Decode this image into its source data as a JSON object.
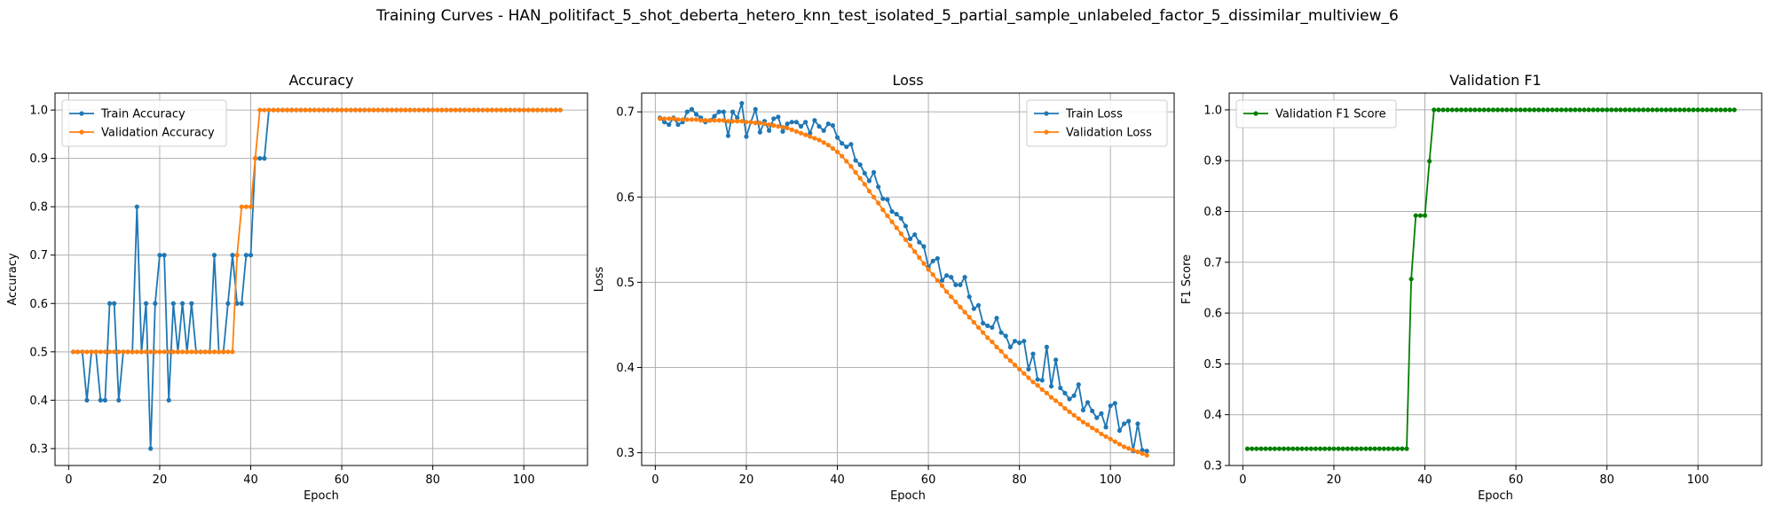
{
  "figure": {
    "suptitle": "Training Curves - HAN_politifact_5_shot_deberta_hetero_knn_test_isolated_5_partial_sample_unlabeled_factor_5_dissimilar_multiview_6"
  },
  "colors": {
    "blue": "#1f77b4",
    "orange": "#ff7f0e",
    "green": "#008000",
    "grid": "#b0b0b0"
  },
  "chart_data": [
    {
      "type": "line",
      "title": "Accuracy",
      "xlabel": "Epoch",
      "ylabel": "Accuracy",
      "xlim": [
        -3,
        114
      ],
      "ylim": [
        0.265,
        1.035
      ],
      "xticks": [
        0,
        20,
        40,
        60,
        80,
        100
      ],
      "yticks": [
        0.3,
        0.4,
        0.5,
        0.6,
        0.7,
        0.8,
        0.9,
        1.0
      ],
      "grid": true,
      "legend": "upper-left",
      "x": [
        1,
        2,
        3,
        4,
        5,
        6,
        7,
        8,
        9,
        10,
        11,
        12,
        13,
        14,
        15,
        16,
        17,
        18,
        19,
        20,
        21,
        22,
        23,
        24,
        25,
        26,
        27,
        28,
        29,
        30,
        31,
        32,
        33,
        34,
        35,
        36,
        37,
        38,
        39,
        40,
        41,
        42,
        43,
        44,
        45,
        46,
        47,
        48,
        49,
        50,
        51,
        52,
        53,
        54,
        55,
        56,
        57,
        58,
        59,
        60,
        61,
        62,
        63,
        64,
        65,
        66,
        67,
        68,
        69,
        70,
        71,
        72,
        73,
        74,
        75,
        76,
        77,
        78,
        79,
        80,
        81,
        82,
        83,
        84,
        85,
        86,
        87,
        88,
        89,
        90,
        91,
        92,
        93,
        94,
        95,
        96,
        97,
        98,
        99,
        100,
        101,
        102,
        103,
        104,
        105,
        106,
        107,
        108
      ],
      "series": [
        {
          "name": "Train Accuracy",
          "color": "#1f77b4",
          "values": [
            0.5,
            0.5,
            0.5,
            0.4,
            0.5,
            0.5,
            0.4,
            0.4,
            0.6,
            0.6,
            0.4,
            0.5,
            0.5,
            0.5,
            0.8,
            0.5,
            0.6,
            0.3,
            0.6,
            0.7,
            0.7,
            0.4,
            0.6,
            0.5,
            0.6,
            0.5,
            0.6,
            0.5,
            0.5,
            0.5,
            0.5,
            0.7,
            0.5,
            0.5,
            0.6,
            0.7,
            0.6,
            0.6,
            0.7,
            0.7,
            0.9,
            0.9,
            0.9,
            1.0,
            1.0,
            1.0,
            1.0,
            1.0,
            1.0,
            1.0,
            1.0,
            1.0,
            1.0,
            1.0,
            1.0,
            1.0,
            1.0,
            1.0,
            1.0,
            1.0,
            1.0,
            1.0,
            1.0,
            1.0,
            1.0,
            1.0,
            1.0,
            1.0,
            1.0,
            1.0,
            1.0,
            1.0,
            1.0,
            1.0,
            1.0,
            1.0,
            1.0,
            1.0,
            1.0,
            1.0,
            1.0,
            1.0,
            1.0,
            1.0,
            1.0,
            1.0,
            1.0,
            1.0,
            1.0,
            1.0,
            1.0,
            1.0,
            1.0,
            1.0,
            1.0,
            1.0,
            1.0,
            1.0,
            1.0,
            1.0,
            1.0,
            1.0,
            1.0,
            1.0,
            1.0,
            1.0,
            1.0,
            1.0
          ]
        },
        {
          "name": "Validation Accuracy",
          "color": "#ff7f0e",
          "values": [
            0.5,
            0.5,
            0.5,
            0.5,
            0.5,
            0.5,
            0.5,
            0.5,
            0.5,
            0.5,
            0.5,
            0.5,
            0.5,
            0.5,
            0.5,
            0.5,
            0.5,
            0.5,
            0.5,
            0.5,
            0.5,
            0.5,
            0.5,
            0.5,
            0.5,
            0.5,
            0.5,
            0.5,
            0.5,
            0.5,
            0.5,
            0.5,
            0.5,
            0.5,
            0.5,
            0.5,
            0.7,
            0.8,
            0.8,
            0.8,
            0.9,
            1.0,
            1.0,
            1.0,
            1.0,
            1.0,
            1.0,
            1.0,
            1.0,
            1.0,
            1.0,
            1.0,
            1.0,
            1.0,
            1.0,
            1.0,
            1.0,
            1.0,
            1.0,
            1.0,
            1.0,
            1.0,
            1.0,
            1.0,
            1.0,
            1.0,
            1.0,
            1.0,
            1.0,
            1.0,
            1.0,
            1.0,
            1.0,
            1.0,
            1.0,
            1.0,
            1.0,
            1.0,
            1.0,
            1.0,
            1.0,
            1.0,
            1.0,
            1.0,
            1.0,
            1.0,
            1.0,
            1.0,
            1.0,
            1.0,
            1.0,
            1.0,
            1.0,
            1.0,
            1.0,
            1.0,
            1.0,
            1.0,
            1.0,
            1.0,
            1.0,
            1.0,
            1.0,
            1.0,
            1.0,
            1.0,
            1.0,
            1.0
          ]
        }
      ]
    },
    {
      "type": "line",
      "title": "Loss",
      "xlabel": "Epoch",
      "ylabel": "Loss",
      "xlim": [
        -3,
        114
      ],
      "ylim": [
        0.285,
        0.722
      ],
      "xticks": [
        0,
        20,
        40,
        60,
        80,
        100
      ],
      "yticks": [
        0.3,
        0.4,
        0.5,
        0.6,
        0.7
      ],
      "grid": true,
      "legend": "upper-right",
      "x": [
        1,
        2,
        3,
        4,
        5,
        6,
        7,
        8,
        9,
        10,
        11,
        12,
        13,
        14,
        15,
        16,
        17,
        18,
        19,
        20,
        21,
        22,
        23,
        24,
        25,
        26,
        27,
        28,
        29,
        30,
        31,
        32,
        33,
        34,
        35,
        36,
        37,
        38,
        39,
        40,
        41,
        42,
        43,
        44,
        45,
        46,
        47,
        48,
        49,
        50,
        51,
        52,
        53,
        54,
        55,
        56,
        57,
        58,
        59,
        60,
        61,
        62,
        63,
        64,
        65,
        66,
        67,
        68,
        69,
        70,
        71,
        72,
        73,
        74,
        75,
        76,
        77,
        78,
        79,
        80,
        81,
        82,
        83,
        84,
        85,
        86,
        87,
        88,
        89,
        90,
        91,
        92,
        93,
        94,
        95,
        96,
        97,
        98,
        99,
        100,
        101,
        102,
        103,
        104,
        105,
        106,
        107,
        108
      ],
      "series": [
        {
          "name": "Train Loss",
          "color": "#1f77b4",
          "values": [
            0.693,
            0.688,
            0.685,
            0.693,
            0.685,
            0.688,
            0.7,
            0.703,
            0.697,
            0.693,
            0.688,
            0.69,
            0.695,
            0.7,
            0.7,
            0.672,
            0.7,
            0.693,
            0.71,
            0.671,
            0.688,
            0.703,
            0.676,
            0.689,
            0.678,
            0.692,
            0.694,
            0.677,
            0.686,
            0.688,
            0.688,
            0.683,
            0.688,
            0.675,
            0.69,
            0.683,
            0.678,
            0.686,
            0.684,
            0.67,
            0.663,
            0.659,
            0.662,
            0.643,
            0.638,
            0.628,
            0.619,
            0.629,
            0.612,
            0.598,
            0.597,
            0.583,
            0.58,
            0.575,
            0.566,
            0.551,
            0.556,
            0.547,
            0.542,
            0.518,
            0.525,
            0.528,
            0.502,
            0.508,
            0.506,
            0.497,
            0.497,
            0.506,
            0.483,
            0.469,
            0.473,
            0.452,
            0.449,
            0.447,
            0.458,
            0.441,
            0.437,
            0.424,
            0.431,
            0.429,
            0.431,
            0.398,
            0.416,
            0.386,
            0.385,
            0.424,
            0.378,
            0.409,
            0.376,
            0.37,
            0.363,
            0.367,
            0.38,
            0.35,
            0.359,
            0.349,
            0.341,
            0.346,
            0.33,
            0.355,
            0.358,
            0.326,
            0.334,
            0.337,
            0.302,
            0.334,
            0.303,
            0.302
          ]
        },
        {
          "name": "Validation Loss",
          "color": "#ff7f0e",
          "values": [
            0.692,
            0.692,
            0.692,
            0.692,
            0.691,
            0.691,
            0.691,
            0.691,
            0.691,
            0.69,
            0.69,
            0.69,
            0.69,
            0.69,
            0.69,
            0.689,
            0.689,
            0.689,
            0.689,
            0.688,
            0.688,
            0.687,
            0.687,
            0.686,
            0.685,
            0.684,
            0.683,
            0.682,
            0.681,
            0.679,
            0.677,
            0.675,
            0.673,
            0.671,
            0.669,
            0.667,
            0.664,
            0.661,
            0.657,
            0.653,
            0.648,
            0.642,
            0.636,
            0.629,
            0.622,
            0.615,
            0.607,
            0.6,
            0.593,
            0.585,
            0.578,
            0.571,
            0.564,
            0.557,
            0.55,
            0.543,
            0.536,
            0.529,
            0.522,
            0.515,
            0.509,
            0.502,
            0.496,
            0.489,
            0.483,
            0.477,
            0.471,
            0.465,
            0.459,
            0.453,
            0.447,
            0.441,
            0.435,
            0.43,
            0.424,
            0.419,
            0.413,
            0.408,
            0.403,
            0.398,
            0.393,
            0.388,
            0.383,
            0.379,
            0.374,
            0.37,
            0.365,
            0.361,
            0.357,
            0.352,
            0.348,
            0.344,
            0.34,
            0.336,
            0.333,
            0.329,
            0.326,
            0.322,
            0.319,
            0.316,
            0.313,
            0.31,
            0.307,
            0.305,
            0.303,
            0.301,
            0.299,
            0.297
          ]
        }
      ]
    },
    {
      "type": "line",
      "title": "Validation F1",
      "xlabel": "Epoch",
      "ylabel": "F1 Score",
      "xlim": [
        -3,
        114
      ],
      "ylim": [
        0.3,
        1.033
      ],
      "xticks": [
        0,
        20,
        40,
        60,
        80,
        100
      ],
      "yticks": [
        0.3,
        0.4,
        0.5,
        0.6,
        0.7,
        0.8,
        0.9,
        1.0
      ],
      "grid": true,
      "legend": "upper-left",
      "x": [
        1,
        2,
        3,
        4,
        5,
        6,
        7,
        8,
        9,
        10,
        11,
        12,
        13,
        14,
        15,
        16,
        17,
        18,
        19,
        20,
        21,
        22,
        23,
        24,
        25,
        26,
        27,
        28,
        29,
        30,
        31,
        32,
        33,
        34,
        35,
        36,
        37,
        38,
        39,
        40,
        41,
        42,
        43,
        44,
        45,
        46,
        47,
        48,
        49,
        50,
        51,
        52,
        53,
        54,
        55,
        56,
        57,
        58,
        59,
        60,
        61,
        62,
        63,
        64,
        65,
        66,
        67,
        68,
        69,
        70,
        71,
        72,
        73,
        74,
        75,
        76,
        77,
        78,
        79,
        80,
        81,
        82,
        83,
        84,
        85,
        86,
        87,
        88,
        89,
        90,
        91,
        92,
        93,
        94,
        95,
        96,
        97,
        98,
        99,
        100,
        101,
        102,
        103,
        104,
        105,
        106,
        107,
        108
      ],
      "series": [
        {
          "name": "Validation F1 Score",
          "color": "#008000",
          "values": [
            0.333,
            0.333,
            0.333,
            0.333,
            0.333,
            0.333,
            0.333,
            0.333,
            0.333,
            0.333,
            0.333,
            0.333,
            0.333,
            0.333,
            0.333,
            0.333,
            0.333,
            0.333,
            0.333,
            0.333,
            0.333,
            0.333,
            0.333,
            0.333,
            0.333,
            0.333,
            0.333,
            0.333,
            0.333,
            0.333,
            0.333,
            0.333,
            0.333,
            0.333,
            0.333,
            0.333,
            0.667,
            0.792,
            0.792,
            0.792,
            0.899,
            1.0,
            1.0,
            1.0,
            1.0,
            1.0,
            1.0,
            1.0,
            1.0,
            1.0,
            1.0,
            1.0,
            1.0,
            1.0,
            1.0,
            1.0,
            1.0,
            1.0,
            1.0,
            1.0,
            1.0,
            1.0,
            1.0,
            1.0,
            1.0,
            1.0,
            1.0,
            1.0,
            1.0,
            1.0,
            1.0,
            1.0,
            1.0,
            1.0,
            1.0,
            1.0,
            1.0,
            1.0,
            1.0,
            1.0,
            1.0,
            1.0,
            1.0,
            1.0,
            1.0,
            1.0,
            1.0,
            1.0,
            1.0,
            1.0,
            1.0,
            1.0,
            1.0,
            1.0,
            1.0,
            1.0,
            1.0,
            1.0,
            1.0,
            1.0,
            1.0,
            1.0,
            1.0,
            1.0,
            1.0,
            1.0,
            1.0,
            1.0
          ]
        }
      ]
    }
  ]
}
